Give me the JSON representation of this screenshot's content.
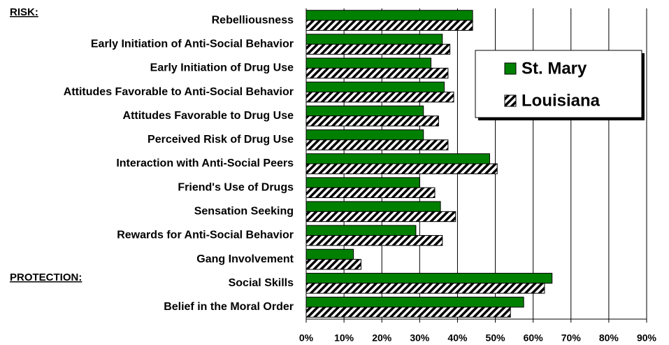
{
  "chart_data": {
    "type": "bar",
    "orientation": "horizontal",
    "annotations": [
      "RISK:",
      "PROTECTION:"
    ],
    "categories": [
      "Rebelliousness",
      "Early Initiation of Anti-Social Behavior",
      "Early Initiation of Drug Use",
      "Attitudes Favorable to Anti-Social Behavior",
      "Attitudes Favorable to Drug Use",
      "Perceived Risk of Drug Use",
      "Interaction with Anti-Social Peers",
      "Friend's Use of Drugs",
      "Sensation Seeking",
      "Rewards for Anti-Social Behavior",
      "Gang Involvement",
      "Social Skills",
      "Belief in the Moral Order"
    ],
    "series": [
      {
        "name": "St. Mary",
        "color": "#008000",
        "values": [
          44,
          36,
          33,
          36.5,
          31,
          31,
          48.5,
          30,
          35.5,
          29,
          12.5,
          65,
          57.5
        ]
      },
      {
        "name": "Louisiana",
        "color": "hatched",
        "values": [
          44,
          38,
          37.5,
          39,
          35,
          37.5,
          50.5,
          34,
          39.5,
          36,
          14.5,
          63,
          54
        ]
      }
    ],
    "xlim": [
      0,
      90
    ],
    "xticks": [
      {
        "value": 0,
        "label": "0%"
      },
      {
        "value": 10,
        "label": "10%"
      },
      {
        "value": 20,
        "label": "20%"
      },
      {
        "value": 30,
        "label": "30%"
      },
      {
        "value": 40,
        "label": "40%"
      },
      {
        "value": 50,
        "label": "50%"
      },
      {
        "value": 60,
        "label": "60%"
      },
      {
        "value": 70,
        "label": "70%"
      },
      {
        "value": 80,
        "label": "80%"
      },
      {
        "value": 90,
        "label": "90%"
      }
    ],
    "grid": true,
    "legend": "upper right"
  }
}
